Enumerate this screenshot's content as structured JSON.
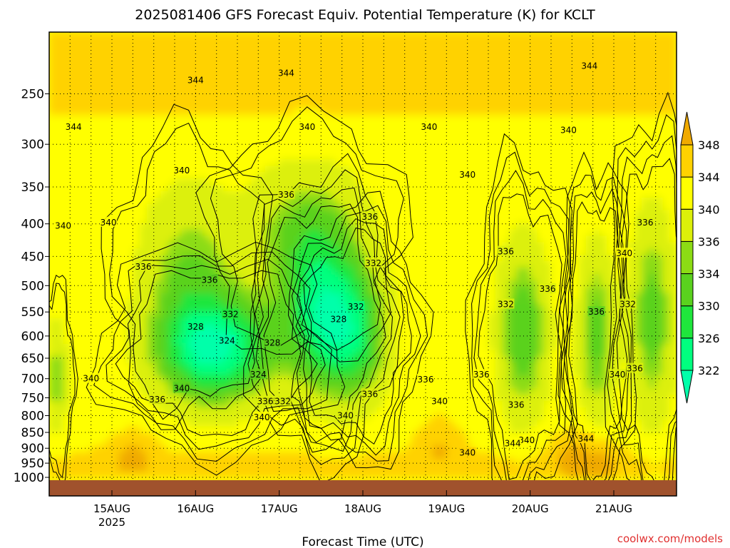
{
  "chart_data": {
    "type": "heatmap",
    "title": "2025081406 GFS Forecast Equiv. Potential Temperature (K) for KCLT",
    "xlabel": "Forecast Time (UTC)",
    "ylabel": "",
    "watermark": "coolwx.com/models",
    "y_axis": {
      "scale": "log",
      "reversed": true,
      "range": [
        1000,
        200
      ],
      "ticks": [
        250,
        300,
        350,
        400,
        450,
        500,
        550,
        600,
        650,
        700,
        750,
        800,
        850,
        900,
        950,
        1000
      ],
      "tick_labels": [
        "250",
        "300",
        "350",
        "400",
        "450",
        "500",
        "550",
        "600",
        "650",
        "700",
        "750",
        "800",
        "850",
        "900",
        "950",
        "1000"
      ]
    },
    "x_axis": {
      "range_hours": [
        0,
        180
      ],
      "ticks_hours": [
        18,
        42,
        66,
        90,
        114,
        138,
        162
      ],
      "tick_labels": [
        "15AUG",
        "16AUG",
        "17AUG",
        "18AUG",
        "19AUG",
        "20AUG",
        "21AUG"
      ],
      "year_label": "2025",
      "vertical_dotted_grid_every_hours": 6
    },
    "grid": true,
    "colorbar": {
      "placement": "right",
      "levels": [
        322,
        326,
        330,
        334,
        336,
        340,
        344,
        348
      ],
      "labels": [
        "322",
        "326",
        "330",
        "334",
        "336",
        "340",
        "344",
        "348"
      ],
      "colors": [
        "#00ff7f",
        "#1fe63c",
        "#5ad21e",
        "#8cdc14",
        "#dcf00a",
        "#ffff00",
        "#ffd200",
        "#f0aa00"
      ],
      "extend_low_color": "#00ffaa",
      "extend_high_color": "#f0aa00"
    },
    "terrain_color": "#a0522d",
    "surface_pressure_hpa": 1010,
    "contour_labels": [
      {
        "value": 344,
        "hour": 42,
        "p": 238
      },
      {
        "value": 344,
        "hour": 68,
        "p": 232
      },
      {
        "value": 344,
        "hour": 155,
        "p": 226
      },
      {
        "value": 344,
        "hour": 7,
        "p": 282
      },
      {
        "value": 340,
        "hour": 74,
        "p": 282
      },
      {
        "value": 340,
        "hour": 109,
        "p": 282
      },
      {
        "value": 340,
        "hour": 149,
        "p": 285
      },
      {
        "value": 340,
        "hour": 38,
        "p": 330
      },
      {
        "value": 340,
        "hour": 120,
        "p": 335
      },
      {
        "value": 340,
        "hour": 4,
        "p": 403
      },
      {
        "value": 340,
        "hour": 17,
        "p": 398
      },
      {
        "value": 340,
        "hour": 12,
        "p": 700
      },
      {
        "value": 340,
        "hour": 38,
        "p": 722
      },
      {
        "value": 340,
        "hour": 61,
        "p": 805
      },
      {
        "value": 340,
        "hour": 85,
        "p": 800
      },
      {
        "value": 340,
        "hour": 112,
        "p": 760
      },
      {
        "value": 340,
        "hour": 120,
        "p": 915
      },
      {
        "value": 340,
        "hour": 137,
        "p": 875
      },
      {
        "value": 340,
        "hour": 163,
        "p": 690
      },
      {
        "value": 340,
        "hour": 165,
        "p": 445
      },
      {
        "value": 344,
        "hour": 133,
        "p": 885
      },
      {
        "value": 344,
        "hour": 154,
        "p": 870
      },
      {
        "value": 336,
        "hour": 68,
        "p": 360
      },
      {
        "value": 336,
        "hour": 92,
        "p": 390
      },
      {
        "value": 336,
        "hour": 27,
        "p": 467
      },
      {
        "value": 336,
        "hour": 46,
        "p": 490
      },
      {
        "value": 336,
        "hour": 131,
        "p": 442
      },
      {
        "value": 336,
        "hour": 143,
        "p": 506
      },
      {
        "value": 336,
        "hour": 171,
        "p": 398
      },
      {
        "value": 336,
        "hour": 157,
        "p": 550
      },
      {
        "value": 336,
        "hour": 168,
        "p": 675
      },
      {
        "value": 336,
        "hour": 124,
        "p": 690
      },
      {
        "value": 336,
        "hour": 108,
        "p": 702
      },
      {
        "value": 336,
        "hour": 134,
        "p": 770
      },
      {
        "value": 336,
        "hour": 31,
        "p": 755
      },
      {
        "value": 336,
        "hour": 63,
        "p": 760
      },
      {
        "value": 336,
        "hour": 92,
        "p": 740
      },
      {
        "value": 332,
        "hour": 52,
        "p": 555
      },
      {
        "value": 332,
        "hour": 93,
        "p": 461
      },
      {
        "value": 332,
        "hour": 88,
        "p": 540
      },
      {
        "value": 332,
        "hour": 67,
        "p": 760
      },
      {
        "value": 332,
        "hour": 131,
        "p": 535
      },
      {
        "value": 332,
        "hour": 166,
        "p": 535
      },
      {
        "value": 328,
        "hour": 42,
        "p": 580
      },
      {
        "value": 328,
        "hour": 64,
        "p": 615
      },
      {
        "value": 328,
        "hour": 83,
        "p": 565
      },
      {
        "value": 324,
        "hour": 51,
        "p": 610
      },
      {
        "value": 324,
        "hour": 60,
        "p": 690
      },
      {
        "value": 336,
        "hour": 62,
        "p": 760
      },
      {
        "value": 340,
        "hour": 38,
        "p": 725
      }
    ]
  }
}
